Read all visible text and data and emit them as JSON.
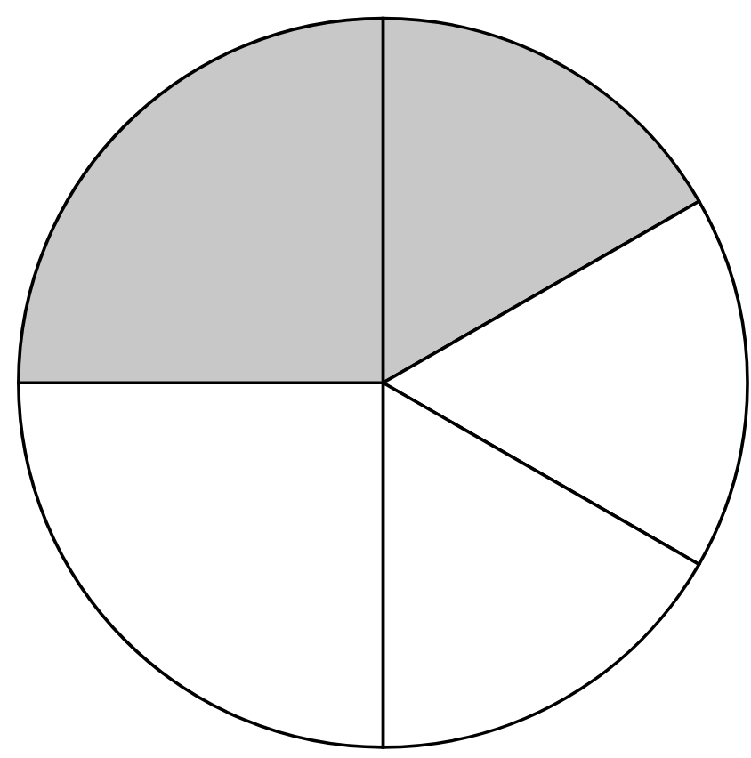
{
  "chart_data": {
    "type": "pie",
    "categories": [
      null,
      null,
      null,
      null,
      null
    ],
    "values": [
      16.7,
      16.6,
      16.7,
      25,
      25
    ],
    "colors": [
      "#c8c8c8",
      "#ffffff",
      "#ffffff",
      "#ffffff",
      "#c8c8c8"
    ]
  }
}
